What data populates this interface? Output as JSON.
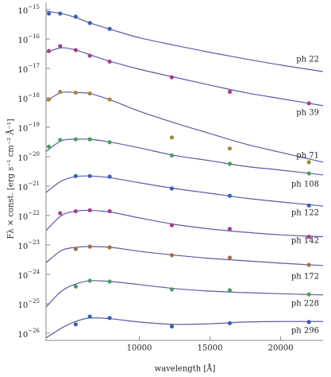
{
  "chart_data": {
    "type": "scatter",
    "xlabel": "wavelength [Å]",
    "ylabel": "Fλ × const. [erg s⁻¹ cm⁻² Å⁻¹]",
    "log_y": true,
    "xlim": [
      3400,
      23000
    ],
    "ylim": [
      5.7e-27,
      1.75e-15
    ],
    "xticks": [
      10000,
      15000,
      20000
    ],
    "yticks": [
      {
        "value": 1e-15,
        "label": "10",
        "power": "−15"
      },
      {
        "value": 1e-16,
        "label": "10",
        "power": "−16"
      },
      {
        "value": 1e-17,
        "label": "10",
        "power": "−17"
      },
      {
        "value": 1e-18,
        "label": "10",
        "power": "−18"
      },
      {
        "value": 1e-19,
        "label": "10",
        "power": "−19"
      },
      {
        "value": 1e-20,
        "label": "10",
        "power": "−20"
      },
      {
        "value": 1e-21,
        "label": "10",
        "power": "−21"
      },
      {
        "value": 1e-22,
        "label": "10",
        "power": "−22"
      },
      {
        "value": 1e-23,
        "label": "10",
        "power": "−23"
      },
      {
        "value": 1e-24,
        "label": "10",
        "power": "−24"
      },
      {
        "value": 1e-25,
        "label": "10",
        "power": "−25"
      },
      {
        "value": 1e-26,
        "label": "10",
        "power": "−26"
      }
    ],
    "x": [
      3600,
      4400,
      5500,
      6500,
      7900,
      12300,
      16400,
      22000
    ],
    "model_x": [
      3400,
      4500,
      5500,
      6500,
      8000,
      10000,
      12500,
      15000,
      17500,
      20000,
      23000
    ],
    "model_color": "#5a5ca8",
    "series": [
      {
        "name": "ph 22",
        "color": "#3b5fb5",
        "values": [
          7.3e-16,
          7.3e-16,
          5.7e-16,
          3.5e-16,
          2.2e-16,
          null,
          null,
          null
        ],
        "model": [
          8.8e-16,
          7.3e-16,
          5.4e-16,
          3.5e-16,
          2.1e-16,
          1.1e-16,
          6.1e-17,
          3.5e-17,
          2.1e-17,
          1.3e-17,
          7.8e-18
        ]
      },
      {
        "name": "ph 39",
        "color": "#a83c8e",
        "values": [
          3.9e-17,
          5.7e-17,
          4.2e-17,
          2.7e-17,
          1.7e-17,
          5e-18,
          1.6e-18,
          6.5e-19
        ],
        "model": [
          3.5e-17,
          5e-17,
          4.2e-17,
          2.9e-17,
          1.7e-17,
          9.4e-18,
          5e-18,
          2.7e-18,
          1.5e-18,
          9.4e-19,
          5.4e-19
        ]
      },
      {
        "name": "ph 71",
        "color": "#a08a3a",
        "values": [
          8.8e-19,
          1.6e-18,
          1.5e-18,
          1.4e-18,
          8.8e-19,
          4.5e-20,
          1.9e-20,
          6.5e-21
        ],
        "model": [
          7.8e-19,
          1.5e-18,
          1.5e-18,
          1.4e-18,
          8.3e-19,
          3.5e-19,
          1.4e-19,
          6.1e-20,
          2.7e-20,
          1.4e-20,
          6.5e-21
        ]
      },
      {
        "name": "ph 108",
        "color": "#4e9e5e",
        "values": [
          2.2e-20,
          3.7e-20,
          3.9e-20,
          3.9e-20,
          3.1e-20,
          1.1e-20,
          5.7e-21,
          2.7e-21
        ],
        "model": [
          1.5e-20,
          3.5e-20,
          3.9e-20,
          3.9e-20,
          3.1e-20,
          2e-20,
          1.1e-20,
          7.3e-21,
          4.7e-21,
          3.5e-21,
          2.4e-21
        ]
      },
      {
        "name": "ph 122",
        "color": "#3b5fb5",
        "values": [
          null,
          null,
          2.2e-21,
          2.2e-21,
          2.1e-21,
          8.3e-22,
          4.7e-22,
          2.2e-22
        ],
        "model": [
          6.1e-22,
          1.5e-21,
          2.1e-21,
          2.2e-21,
          1.9e-21,
          1.3e-21,
          8.3e-22,
          5.7e-22,
          3.9e-22,
          2.9e-22,
          2.1e-22
        ]
      },
      {
        "name": "ph 142",
        "color": "#a83c8e",
        "values": [
          null,
          1.2e-22,
          1.4e-22,
          1.5e-22,
          1.4e-22,
          4.7e-23,
          3.5e-23,
          1.9e-23
        ],
        "model": [
          3.1e-23,
          1e-22,
          1.4e-22,
          1.5e-22,
          1.3e-22,
          8.3e-23,
          5e-23,
          3.5e-23,
          2.7e-23,
          2.2e-23,
          1.9e-23
        ]
      },
      {
        "name": "ph 172",
        "color": "#a0703a",
        "values": [
          null,
          null,
          7.3e-24,
          8.8e-24,
          8.3e-24,
          4.5e-24,
          3.7e-24,
          2.1e-24
        ],
        "model": [
          2.5e-24,
          6.5e-24,
          8.3e-24,
          8.8e-24,
          8.3e-24,
          6.1e-24,
          4.5e-24,
          3.5e-24,
          2.9e-24,
          2.4e-24,
          2e-24
        ]
      },
      {
        "name": "ph 228",
        "color": "#4e9e5e",
        "values": [
          null,
          null,
          3.9e-25,
          6.1e-25,
          5.7e-25,
          3.1e-25,
          2.9e-25,
          2.1e-25
        ],
        "model": [
          7.8e-26,
          2.7e-25,
          4.7e-25,
          6.1e-25,
          5.7e-25,
          4.5e-25,
          3.3e-25,
          2.7e-25,
          2.4e-25,
          2.2e-25,
          2e-25
        ]
      },
      {
        "name": "ph 296",
        "color": "#3b5fb5",
        "values": [
          null,
          null,
          2e-26,
          3.7e-26,
          3.3e-26,
          1.7e-26,
          2.2e-26,
          2.4e-26
        ],
        "model": [
          6.9e-27,
          1.5e-26,
          2.5e-26,
          3.3e-26,
          3.1e-26,
          2.4e-26,
          2e-26,
          2.1e-26,
          2.4e-26,
          2.5e-26,
          2.5e-26
        ]
      }
    ]
  }
}
